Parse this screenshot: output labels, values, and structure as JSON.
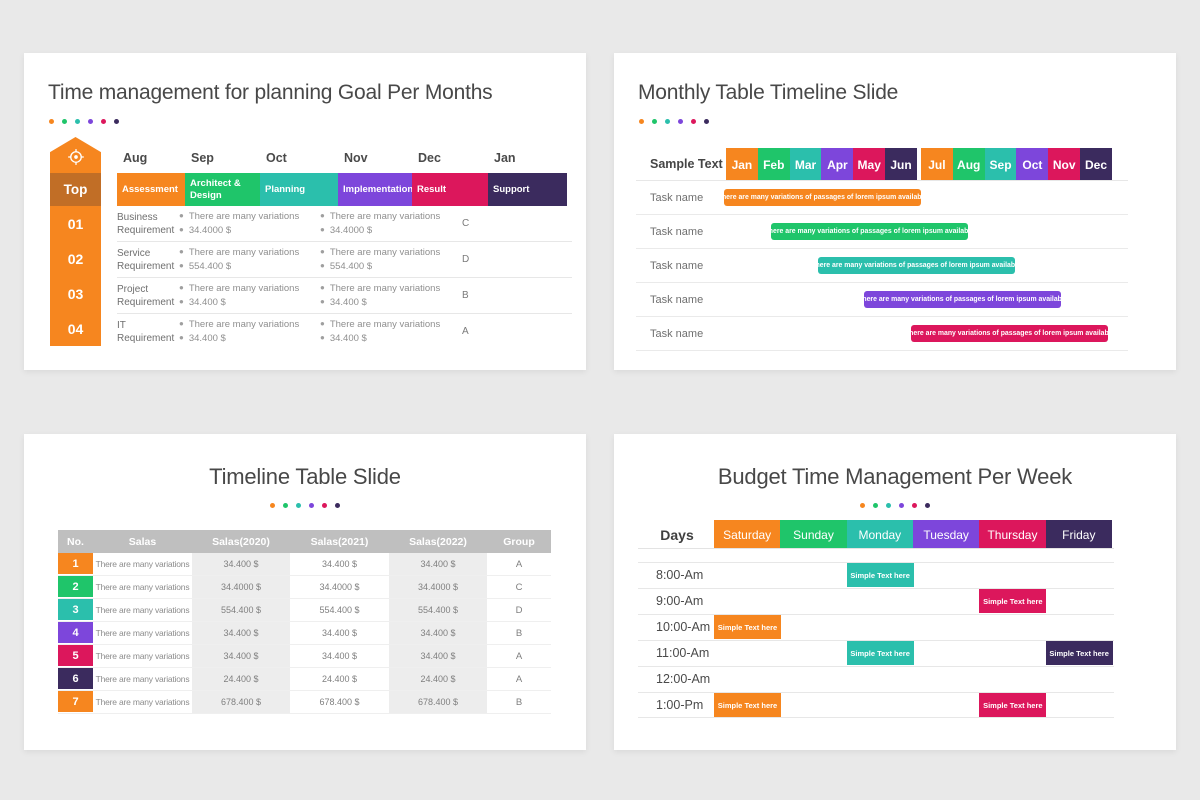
{
  "palette": {
    "orange": "#F6861F",
    "green": "#1FC56A",
    "teal": "#2BBFAC",
    "purple": "#7D46DB",
    "pink": "#DC175C",
    "navy": "#3B2B5E",
    "top_band": "#C16E26",
    "table_header_gray": "#BFBFBF",
    "shaded_cell": "#EDEDED",
    "background": "#E9E9E9",
    "slide": "#FFFFFF"
  },
  "accent_dots": [
    "orange",
    "green",
    "teal",
    "purple",
    "pink",
    "navy"
  ],
  "slide1": {
    "title": "Time management for planning Goal Per Months",
    "months": [
      "Aug",
      "Sep",
      "Oct",
      "Nov",
      "Dec",
      "Jan"
    ],
    "phases": [
      {
        "label": "Assessment",
        "color": "orange"
      },
      {
        "label": "Architect & Design",
        "color": "green"
      },
      {
        "label": "Planning",
        "color": "teal"
      },
      {
        "label": "Implementation",
        "color": "purple"
      },
      {
        "label": "Result",
        "color": "pink"
      },
      {
        "label": "Support",
        "color": "navy"
      }
    ],
    "side": {
      "icon": "target-icon",
      "top_label": "Top",
      "numbers": [
        "01",
        "02",
        "03",
        "04"
      ]
    },
    "rows": [
      {
        "label": "Business Requirement",
        "col1": [
          "There are many variations",
          "34.4000 $"
        ],
        "col2": [
          "There are many variations",
          "34.4000 $"
        ],
        "group": "C"
      },
      {
        "label": "Service Requirement",
        "col1": [
          "There are many variations",
          "554.400 $"
        ],
        "col2": [
          "There are many variations",
          "554.400 $"
        ],
        "group": "D"
      },
      {
        "label": "Project Requirement",
        "col1": [
          "There are many variations",
          "34.400 $"
        ],
        "col2": [
          "There are many variations",
          "34.400 $"
        ],
        "group": "B"
      },
      {
        "label": "IT Requirement",
        "col1": [
          "There are many variations",
          "34.400 $"
        ],
        "col2": [
          "There are many variations",
          "34.400 $"
        ],
        "group": "A"
      }
    ]
  },
  "slide2": {
    "title": "Monthly Table Timeline Slide",
    "corner_label": "Sample Text",
    "months": [
      "Jan",
      "Feb",
      "Mar",
      "Apr",
      "May",
      "Jun",
      "Jul",
      "Aug",
      "Sep",
      "Oct",
      "Nov",
      "Dec"
    ],
    "row_label": "Task name",
    "bar_text": "There are many variations of passages of lorem ipsum available",
    "bar_colors": [
      "orange",
      "green",
      "teal",
      "purple",
      "pink"
    ]
  },
  "slide3": {
    "title": "Timeline Table Slide",
    "headers": [
      "No.",
      "Salas",
      "Salas(2020)",
      "Salas(2021)",
      "Salas(2022)",
      "Group"
    ],
    "rows": [
      {
        "no": "1",
        "color": "orange",
        "salas": "There are many variations",
        "v2020": "34.400 $",
        "v2021": "34.400 $",
        "v2022": "34.400 $",
        "group": "A"
      },
      {
        "no": "2",
        "color": "green",
        "salas": "There are many variations",
        "v2020": "34.4000 $",
        "v2021": "34.4000 $",
        "v2022": "34.4000 $",
        "group": "C"
      },
      {
        "no": "3",
        "color": "teal",
        "salas": "There are many variations",
        "v2020": "554.400 $",
        "v2021": "554.400 $",
        "v2022": "554.400 $",
        "group": "D"
      },
      {
        "no": "4",
        "color": "purple",
        "salas": "There are many variations",
        "v2020": "34.400 $",
        "v2021": "34.400 $",
        "v2022": "34.400 $",
        "group": "B"
      },
      {
        "no": "5",
        "color": "pink",
        "salas": "There are many variations",
        "v2020": "34.400 $",
        "v2021": "34.400 $",
        "v2022": "34.400 $",
        "group": "A"
      },
      {
        "no": "6",
        "color": "navy",
        "salas": "There are many variations",
        "v2020": "24.400 $",
        "v2021": "24.400 $",
        "v2022": "24.400 $",
        "group": "A"
      },
      {
        "no": "7",
        "color": "orange",
        "salas": "There are many variations",
        "v2020": "678.400 $",
        "v2021": "678.400 $",
        "v2022": "678.400 $",
        "group": "B"
      }
    ]
  },
  "slide4": {
    "title": "Budget Time Management Per Week",
    "days_label": "Days",
    "days": [
      {
        "label": "Saturday",
        "color": "orange"
      },
      {
        "label": "Sunday",
        "color": "green"
      },
      {
        "label": "Monday",
        "color": "teal"
      },
      {
        "label": "Tuesday",
        "color": "purple"
      },
      {
        "label": "Thursday",
        "color": "pink"
      },
      {
        "label": "Friday",
        "color": "navy"
      }
    ],
    "event_label": "Simple Text here",
    "rows": [
      {
        "time": "8:00-Am",
        "events": [
          {
            "day": 2,
            "color": "teal"
          }
        ]
      },
      {
        "time": "9:00-Am",
        "events": [
          {
            "day": 4,
            "color": "pink"
          }
        ]
      },
      {
        "time": "10:00-Am",
        "events": [
          {
            "day": 0,
            "color": "orange"
          }
        ]
      },
      {
        "time": "11:00-Am",
        "events": [
          {
            "day": 2,
            "color": "teal"
          },
          {
            "day": 5,
            "color": "navy"
          }
        ]
      },
      {
        "time": "12:00-Am",
        "events": []
      },
      {
        "time": "1:00-Pm",
        "events": [
          {
            "day": 0,
            "color": "orange"
          },
          {
            "day": 4,
            "color": "pink"
          }
        ]
      }
    ]
  }
}
